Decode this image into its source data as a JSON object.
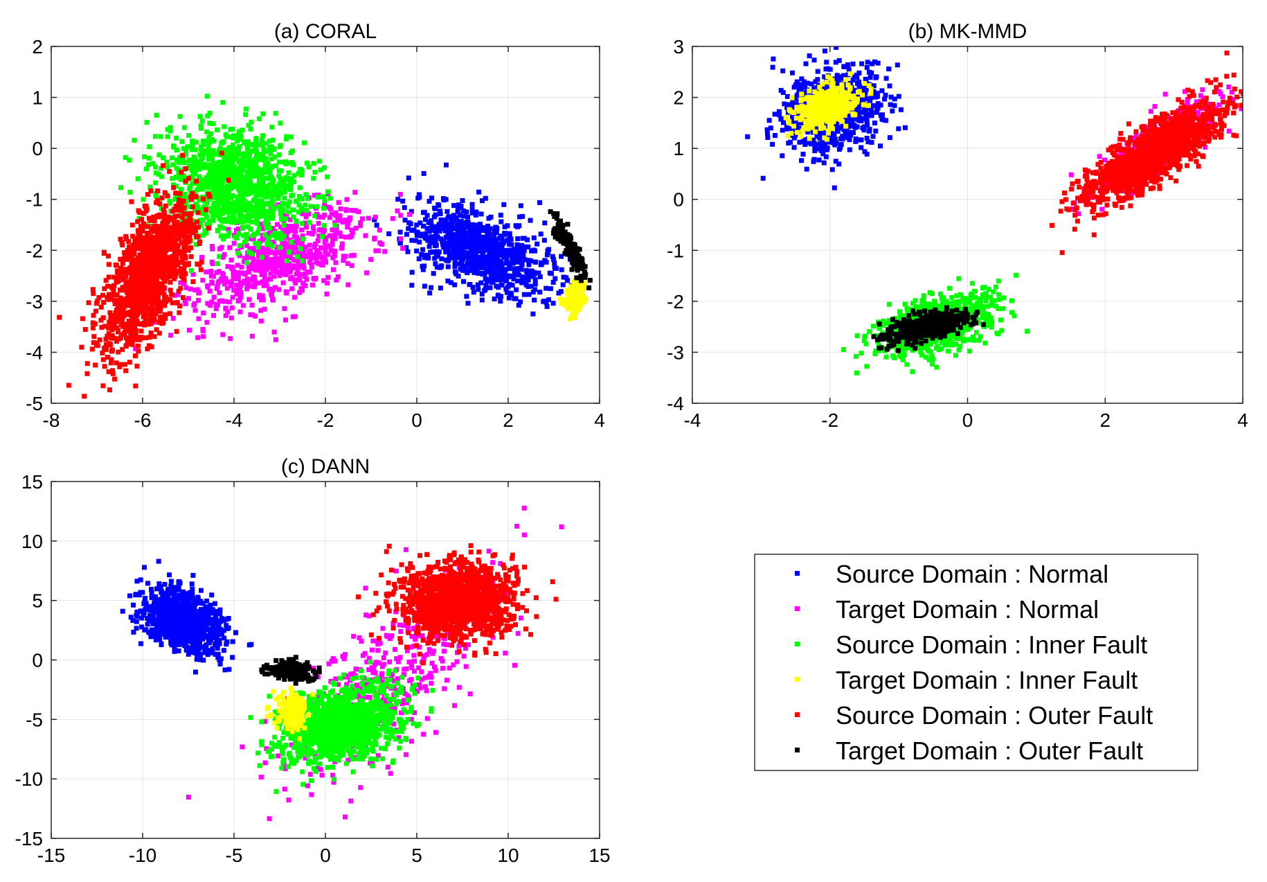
{
  "legend": {
    "placement": "lower-right",
    "entries": [
      {
        "label": "Source Domain : Normal",
        "color": "#0000ff"
      },
      {
        "label": "Target Domain : Normal",
        "color": "#ff00ff"
      },
      {
        "label": "Source Domain : Inner Fault",
        "color": "#00ff00"
      },
      {
        "label": "Target Domain : Inner Fault",
        "color": "#ffff00"
      },
      {
        "label": "Source Domain : Outer Fault",
        "color": "#ff0000"
      },
      {
        "label": "Target Domain : Outer Fault",
        "color": "#000000"
      }
    ]
  },
  "chart_data": [
    {
      "type": "scatter",
      "title": "(a) CORAL",
      "xlabel": "",
      "ylabel": "",
      "xlim": [
        -8,
        4
      ],
      "ylim": [
        -5,
        2
      ],
      "xticks": [
        -8,
        -6,
        -4,
        -2,
        0,
        2,
        4
      ],
      "yticks": [
        -5,
        -4,
        -3,
        -2,
        -1,
        0,
        1,
        2
      ],
      "grid": true,
      "clusters": [
        {
          "series": "Source Domain : Normal",
          "color": "#0000ff",
          "center": [
            1.4,
            -2.0
          ],
          "spread": [
            0.75,
            0.42
          ],
          "corr": -0.45,
          "count": 900
        },
        {
          "series": "Target Domain : Normal",
          "color": "#ff00ff",
          "center": [
            -3.0,
            -2.2
          ],
          "spread": [
            1.0,
            0.55
          ],
          "corr": 0.6,
          "count": 650
        },
        {
          "series": "Source Domain : Inner Fault",
          "color": "#00ff00",
          "center": [
            -4.0,
            -0.7
          ],
          "spread": [
            0.8,
            0.55
          ],
          "corr": -0.2,
          "count": 1100
        },
        {
          "series": "Target Domain : Inner Fault",
          "color": "#ffff00",
          "center": [
            3.45,
            -2.95
          ],
          "spread": [
            0.1,
            0.14
          ],
          "corr": 0.0,
          "count": 160
        },
        {
          "series": "Source Domain : Outer Fault",
          "color": "#ff0000",
          "center": [
            -5.9,
            -2.5
          ],
          "spread": [
            0.5,
            0.75
          ],
          "corr": 0.6,
          "count": 1200
        },
        {
          "series": "Target Domain : Outer Fault",
          "color": "#000000",
          "center": [
            3.35,
            -1.95
          ],
          "spread": [
            0.17,
            0.28
          ],
          "corr": -0.9,
          "count": 180
        }
      ]
    },
    {
      "type": "scatter",
      "title": "(b) MK-MMD",
      "xlabel": "",
      "ylabel": "",
      "xlim": [
        -4,
        4
      ],
      "ylim": [
        -4,
        3
      ],
      "xticks": [
        -4,
        -2,
        0,
        2,
        4
      ],
      "yticks": [
        -4,
        -3,
        -2,
        -1,
        0,
        1,
        2,
        3
      ],
      "grid": true,
      "clusters": [
        {
          "series": "Source Domain : Normal",
          "color": "#0000ff",
          "center": [
            -1.95,
            1.75
          ],
          "spread": [
            0.38,
            0.42
          ],
          "corr": 0.25,
          "count": 800
        },
        {
          "series": "Target Domain : Normal",
          "color": "#ff00ff",
          "center": [
            2.8,
            1.1
          ],
          "spread": [
            0.45,
            0.45
          ],
          "corr": 0.8,
          "count": 350
        },
        {
          "series": "Source Domain : Inner Fault",
          "color": "#00ff00",
          "center": [
            -0.45,
            -2.45
          ],
          "spread": [
            0.42,
            0.3
          ],
          "corr": 0.5,
          "count": 800
        },
        {
          "series": "Target Domain : Inner Fault",
          "color": "#ffff00",
          "center": [
            -2.05,
            1.8
          ],
          "spread": [
            0.22,
            0.22
          ],
          "corr": 0.3,
          "count": 400
        },
        {
          "series": "Source Domain : Outer Fault",
          "color": "#ff0000",
          "center": [
            2.7,
            0.9
          ],
          "spread": [
            0.5,
            0.5
          ],
          "corr": 0.82,
          "count": 1300
        },
        {
          "series": "Target Domain : Outer Fault",
          "color": "#000000",
          "center": [
            -0.6,
            -2.5
          ],
          "spread": [
            0.28,
            0.16
          ],
          "corr": 0.5,
          "count": 450
        }
      ]
    },
    {
      "type": "scatter",
      "title": "(c) DANN",
      "xlabel": "",
      "ylabel": "",
      "xlim": [
        -15,
        15
      ],
      "ylim": [
        -15,
        15
      ],
      "xticks": [
        -15,
        -10,
        -5,
        0,
        5,
        10,
        15
      ],
      "yticks": [
        -15,
        -10,
        -5,
        0,
        5,
        10,
        15
      ],
      "grid": true,
      "clusters": [
        {
          "series": "Source Domain : Normal",
          "color": "#0000ff",
          "center": [
            -7.8,
            3.3
          ],
          "spread": [
            1.1,
            1.35
          ],
          "corr": -0.4,
          "count": 900
        },
        {
          "series": "Target Domain : Normal",
          "color": "#ff00ff",
          "center": [
            3.5,
            -1.5
          ],
          "spread": [
            3.0,
            4.5
          ],
          "corr": 0.75,
          "count": 400
        },
        {
          "series": "Source Domain : Inner Fault",
          "color": "#00ff00",
          "center": [
            0.8,
            -5.5
          ],
          "spread": [
            1.6,
            1.6
          ],
          "corr": 0.3,
          "count": 1200
        },
        {
          "series": "Target Domain : Inner Fault",
          "color": "#ffff00",
          "center": [
            -1.8,
            -4.3
          ],
          "spread": [
            0.45,
            0.85
          ],
          "corr": 0.0,
          "count": 150
        },
        {
          "series": "Source Domain : Outer Fault",
          "color": "#ff0000",
          "center": [
            7.3,
            5.0
          ],
          "spread": [
            1.6,
            1.6
          ],
          "corr": 0.0,
          "count": 1300
        },
        {
          "series": "Target Domain : Outer Fault",
          "color": "#000000",
          "center": [
            -1.8,
            -0.9
          ],
          "spread": [
            0.65,
            0.38
          ],
          "corr": -0.3,
          "count": 180
        }
      ]
    }
  ]
}
